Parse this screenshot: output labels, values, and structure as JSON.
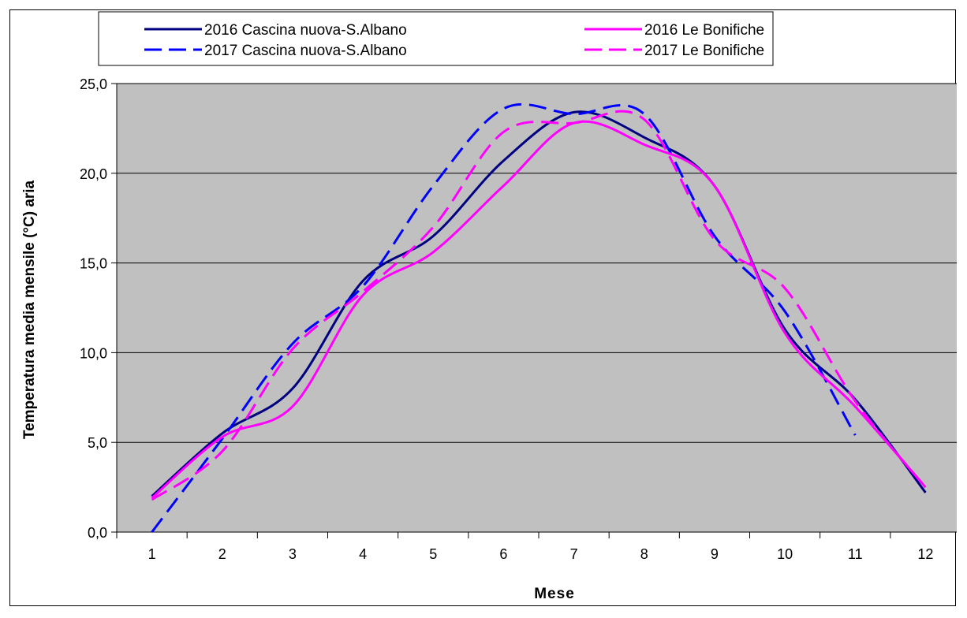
{
  "chart_data": {
    "type": "line",
    "title": "",
    "xlabel": "Mese",
    "ylabel": "Temperatura media mensile (°C) aria",
    "x": [
      1,
      2,
      3,
      4,
      5,
      6,
      7,
      8,
      9,
      10,
      11,
      12
    ],
    "x_tick_labels": [
      "1",
      "2",
      "3",
      "4",
      "5",
      "6",
      "7",
      "8",
      "9",
      "10",
      "11",
      "12"
    ],
    "ylim": [
      0,
      25
    ],
    "y_ticks": [
      0,
      5,
      10,
      15,
      20,
      25
    ],
    "y_tick_labels": [
      "0,0",
      "5,0",
      "10,0",
      "15,0",
      "20,0",
      "25,0"
    ],
    "grid": true,
    "plot_background": "#c0c0c0",
    "legend_position": "top",
    "series": [
      {
        "name": "2016 Cascina nuova-S.Albano",
        "color": "#000080",
        "dash": "solid",
        "x": [
          1,
          2,
          3,
          4,
          5,
          6,
          7,
          8,
          9,
          10,
          11,
          12
        ],
        "values": [
          2.0,
          5.5,
          8.0,
          14.0,
          16.5,
          20.7,
          23.4,
          22.0,
          19.3,
          11.3,
          7.4,
          2.2
        ]
      },
      {
        "name": "2017 Cascina nuova-S.Albano",
        "color": "#0000ff",
        "dash": "dashed",
        "x": [
          1,
          2,
          3,
          4,
          5,
          6,
          7,
          8,
          9,
          10,
          11
        ],
        "values": [
          0.0,
          5.2,
          10.5,
          13.7,
          19.3,
          23.6,
          23.3,
          23.3,
          16.5,
          12.3,
          5.4
        ]
      },
      {
        "name": "2016 Le Bonifiche",
        "color": "#ff00ff",
        "dash": "solid",
        "x": [
          1,
          2,
          3,
          4,
          5,
          6,
          7,
          8,
          9,
          10,
          11,
          12
        ],
        "values": [
          1.9,
          5.3,
          7.0,
          13.2,
          15.6,
          19.3,
          22.8,
          21.6,
          19.3,
          11.1,
          7.0,
          2.5
        ]
      },
      {
        "name": "2017 Le Bonifiche",
        "color": "#ff00ff",
        "dash": "dashed",
        "x": [
          1,
          2,
          3,
          4,
          5,
          6,
          7,
          8,
          9,
          10,
          11,
          12
        ],
        "values": [
          1.8,
          4.5,
          10.2,
          13.4,
          17.0,
          22.3,
          22.8,
          23.0,
          16.3,
          13.6,
          7.3,
          2.5
        ]
      }
    ]
  }
}
